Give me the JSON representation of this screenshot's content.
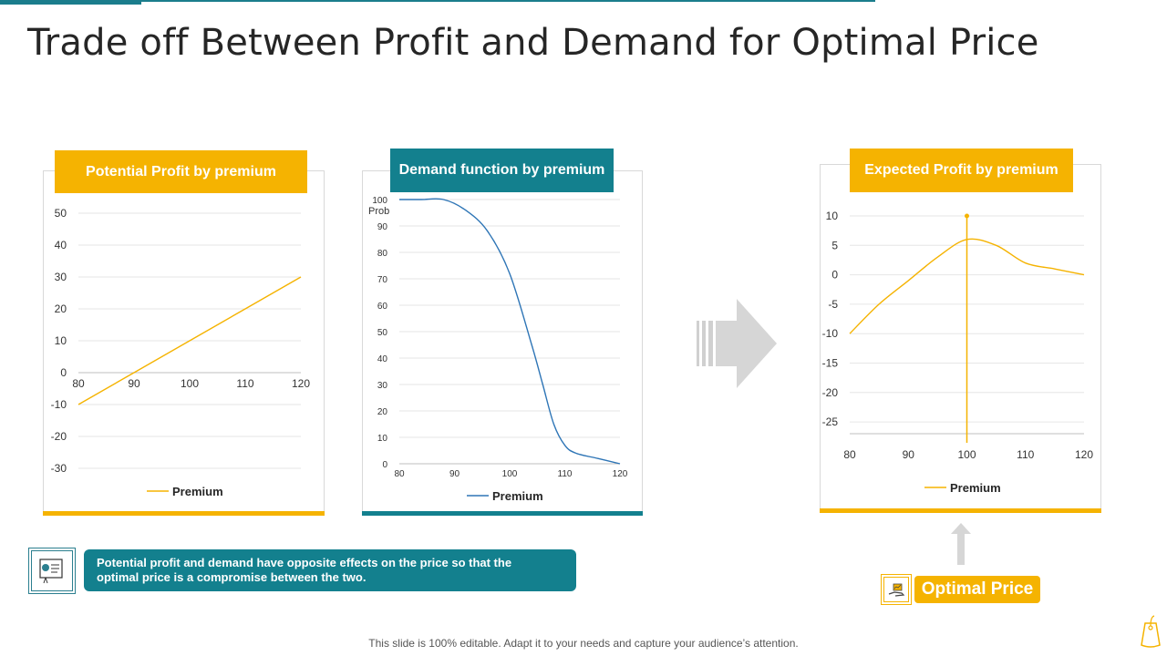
{
  "title": "Trade off Between Profit and Demand for Optimal Price",
  "colors": {
    "orange": "#f5b301",
    "teal": "#13808e",
    "gridline": "#e6e6e6",
    "demand_line": "#2e75b6"
  },
  "icons": [
    "document-display-icon",
    "right-arrow-icon",
    "up-arrow-icon",
    "hand-chart-icon",
    "price-tag-icon"
  ],
  "chart_data": [
    {
      "type": "line",
      "title": "Potential Profit by premium",
      "x": [
        80,
        90,
        100,
        110,
        120
      ],
      "series": [
        {
          "name": "Premium",
          "values": [
            -10,
            0,
            10,
            20,
            30
          ]
        }
      ],
      "xticks": [
        "80",
        "90",
        "100",
        "110",
        "120"
      ],
      "yticks": [
        "50",
        "40",
        "30",
        "20",
        "10",
        "0",
        "-10",
        "-20",
        "-30"
      ],
      "xlim": [
        80,
        120
      ],
      "ylim": [
        -30,
        50
      ],
      "grid": true,
      "legend": "bottom"
    },
    {
      "type": "line",
      "title": "Demand function by premium",
      "ylabel": "Prob",
      "x": [
        80,
        84,
        88,
        92,
        96,
        100,
        104,
        106,
        108,
        110,
        112,
        116,
        120
      ],
      "series": [
        {
          "name": "Premium",
          "values": [
            100,
            100,
            100,
            96,
            88,
            72,
            45,
            30,
            15,
            7,
            4,
            2,
            0
          ]
        }
      ],
      "xticks": [
        "80",
        "90",
        "100",
        "110",
        "120"
      ],
      "yticks": [
        "100",
        "90",
        "80",
        "70",
        "60",
        "50",
        "40",
        "30",
        "20",
        "10",
        "0"
      ],
      "xlim": [
        80,
        120
      ],
      "ylim": [
        0,
        100
      ],
      "grid": true,
      "legend": "bottom"
    },
    {
      "type": "line",
      "title": "Expected Profit by premium",
      "x": [
        80,
        85,
        90,
        95,
        100,
        105,
        110,
        115,
        120
      ],
      "series": [
        {
          "name": "Premium",
          "values": [
            -10,
            -5,
            -1,
            3,
            6,
            5,
            2,
            1,
            0
          ]
        }
      ],
      "xticks": [
        "80",
        "90",
        "100",
        "110",
        "120"
      ],
      "yticks": [
        "10",
        "5",
        "0",
        "-5",
        "-10",
        "-15",
        "-20",
        "-25"
      ],
      "xlim": [
        80,
        120
      ],
      "ylim": [
        -27,
        10
      ],
      "marker_x": 100,
      "grid": true,
      "legend": "bottom"
    }
  ],
  "note": {
    "line1": "Potential profit and demand have opposite effects on the price so that the",
    "line2": "optimal price is a compromise between the two."
  },
  "optimal_price_label": "Optimal Price",
  "footer": "This slide is 100% editable. Adapt it to your needs and capture your audience’s attention."
}
